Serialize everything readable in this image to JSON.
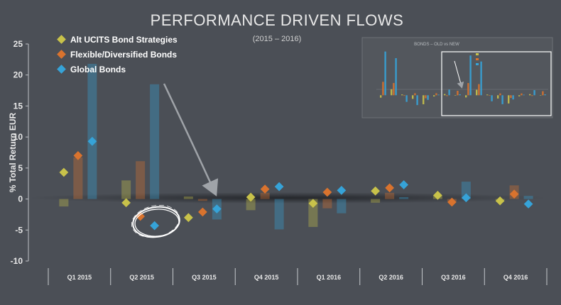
{
  "chart_data": {
    "type": "bar",
    "title": "PERFORMANCE DRIVEN FLOWS",
    "subtitle": "(2015 – 2016)",
    "ylabel": "% Total Return EUR",
    "xlabel": "",
    "ylim": [
      -10,
      25
    ],
    "yticks": [
      25,
      20,
      15,
      10,
      5,
      0,
      -5,
      -10
    ],
    "categories": [
      "Q1 2015",
      "Q2 2015",
      "Q3 2015",
      "Q4 2015",
      "Q1 2016",
      "Q2 2016",
      "Q3 2016",
      "Q4 2016"
    ],
    "legend_position": "top-left",
    "grid": false,
    "series": [
      {
        "name": "Alt UCITS Bond Strategies",
        "color": "#c8c24a",
        "bar_values": [
          -1.2,
          3.0,
          0.4,
          -1.8,
          -4.5,
          -0.6,
          0.6,
          -0.2
        ],
        "marker_values": [
          4.3,
          -0.6,
          -3.0,
          0.3,
          -0.7,
          1.3,
          0.6,
          -0.3
        ]
      },
      {
        "name": "Flexible/Diversified Bonds",
        "color": "#d9732e",
        "bar_values": [
          6.7,
          6.1,
          -0.3,
          1.0,
          -1.5,
          1.0,
          -0.4,
          2.2
        ],
        "marker_values": [
          7.0,
          -2.8,
          -2.1,
          1.6,
          1.1,
          1.8,
          -0.5,
          0.8
        ]
      },
      {
        "name": "Global Bonds",
        "color": "#36a3d8",
        "bar_values": [
          21.8,
          18.5,
          -3.3,
          -4.9,
          -2.3,
          0.3,
          2.8,
          0.5
        ],
        "marker_values": [
          9.3,
          -4.3,
          -1.6,
          2.0,
          1.4,
          2.3,
          0.2,
          -0.8
        ]
      }
    ],
    "annotations": [
      "arrow from Q2 2015 to Q3 2015",
      "hand-drawn circle around Q2 2015 markers"
    ],
    "inset": {
      "title": "BONDS – OLD vs NEW"
    }
  }
}
